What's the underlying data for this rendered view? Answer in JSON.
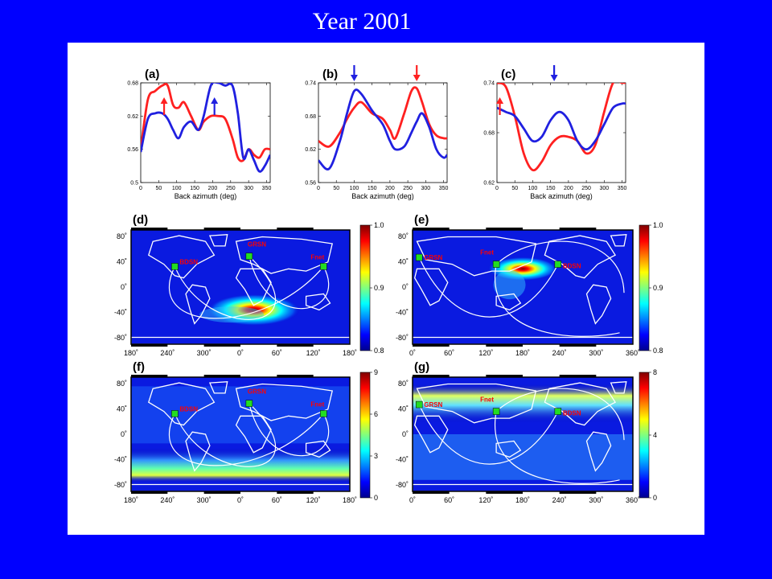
{
  "slide": {
    "title": "Year 2001"
  },
  "colors": {
    "background": "#0000FF",
    "panel": "#FFFFFF",
    "series_red": "#FF2020",
    "series_blue": "#2020E0",
    "station_marker": "#22DD22",
    "station_label": "#FF0000"
  },
  "chart_data": [
    {
      "type": "line",
      "panel": "(a)",
      "xlabel": "Back azimuth (deg)",
      "ylabel": "",
      "xlim": [
        0,
        360
      ],
      "ylim": [
        0.5,
        0.68
      ],
      "xticks": [
        "0",
        "50",
        "100",
        "150",
        "200",
        "250",
        "300",
        "350"
      ],
      "yticks": [
        "0.5",
        "0.56",
        "0.62",
        "0.68"
      ],
      "x": [
        0,
        20,
        40,
        60,
        75,
        90,
        105,
        120,
        140,
        160,
        175,
        195,
        215,
        235,
        255,
        270,
        285,
        300,
        315,
        330,
        345,
        360
      ],
      "series": [
        {
          "color": "red",
          "values": [
            0.56,
            0.65,
            0.665,
            0.675,
            0.675,
            0.64,
            0.635,
            0.645,
            0.62,
            0.595,
            0.61,
            0.62,
            0.62,
            0.615,
            0.58,
            0.545,
            0.54,
            0.56,
            0.55,
            0.545,
            0.56,
            0.56
          ]
        },
        {
          "color": "blue",
          "values": [
            0.555,
            0.615,
            0.625,
            0.625,
            0.615,
            0.595,
            0.58,
            0.6,
            0.61,
            0.595,
            0.62,
            0.675,
            0.68,
            0.675,
            0.675,
            0.625,
            0.545,
            0.56,
            0.54,
            0.52,
            0.53,
            0.55
          ]
        }
      ],
      "annotations": [
        {
          "type": "arrow",
          "color": "red",
          "x": 65,
          "direction": "up"
        },
        {
          "type": "arrow",
          "color": "blue",
          "x": 205,
          "direction": "up"
        }
      ]
    },
    {
      "type": "line",
      "panel": "(b)",
      "xlabel": "Back azimuth (deg)",
      "ylabel": "",
      "xlim": [
        0,
        360
      ],
      "ylim": [
        0.56,
        0.74
      ],
      "xticks": [
        "0",
        "50",
        "100",
        "150",
        "200",
        "250",
        "300",
        "350"
      ],
      "yticks": [
        "0.56",
        "0.62",
        "0.68",
        "0.74"
      ],
      "x": [
        0,
        30,
        60,
        80,
        100,
        120,
        150,
        180,
        200,
        215,
        240,
        260,
        275,
        290,
        310,
        330,
        350,
        360
      ],
      "series": [
        {
          "color": "red",
          "values": [
            0.635,
            0.625,
            0.65,
            0.675,
            0.695,
            0.705,
            0.685,
            0.675,
            0.655,
            0.64,
            0.685,
            0.725,
            0.73,
            0.705,
            0.665,
            0.645,
            0.64,
            0.64
          ]
        },
        {
          "color": "blue",
          "values": [
            0.6,
            0.585,
            0.635,
            0.685,
            0.725,
            0.72,
            0.69,
            0.665,
            0.635,
            0.62,
            0.625,
            0.65,
            0.67,
            0.685,
            0.66,
            0.62,
            0.605,
            0.61
          ]
        }
      ],
      "annotations": [
        {
          "type": "arrow",
          "color": "blue",
          "x": 100,
          "direction": "down"
        },
        {
          "type": "arrow",
          "color": "red",
          "x": 275,
          "direction": "down"
        }
      ]
    },
    {
      "type": "line",
      "panel": "(c)",
      "xlabel": "Back azimuth (deg)",
      "ylabel": "",
      "xlim": [
        0,
        360
      ],
      "ylim": [
        0.62,
        0.74
      ],
      "xticks": [
        "0",
        "50",
        "100",
        "150",
        "200",
        "250",
        "300",
        "350"
      ],
      "yticks": [
        "0.62",
        "0.68",
        "0.74"
      ],
      "x": [
        0,
        25,
        50,
        75,
        100,
        125,
        150,
        175,
        200,
        225,
        250,
        275,
        300,
        325,
        350,
        360
      ],
      "series": [
        {
          "color": "red",
          "values": [
            0.74,
            0.735,
            0.7,
            0.655,
            0.635,
            0.645,
            0.665,
            0.675,
            0.675,
            0.67,
            0.655,
            0.665,
            0.705,
            0.74,
            0.74,
            0.74
          ]
        },
        {
          "color": "blue",
          "values": [
            0.71,
            0.705,
            0.7,
            0.685,
            0.67,
            0.675,
            0.695,
            0.705,
            0.695,
            0.67,
            0.66,
            0.67,
            0.69,
            0.71,
            0.715,
            0.715
          ]
        }
      ],
      "annotations": [
        {
          "type": "arrow",
          "color": "red",
          "x": 8,
          "direction": "up"
        },
        {
          "type": "arrow",
          "color": "blue",
          "x": 160,
          "direction": "down"
        }
      ]
    },
    {
      "type": "heatmap",
      "panel": "(d)",
      "xticks": [
        "180˚",
        "240˚",
        "300˚",
        "0˚",
        "60˚",
        "120˚",
        "180˚"
      ],
      "yticks": [
        "80˚",
        "40˚",
        "0˚",
        "-40˚",
        "-80˚"
      ],
      "colorbar": {
        "min": 0.8,
        "max": 1.0,
        "ticks": [
          "1.0",
          "0.9",
          "0.8"
        ]
      },
      "stations": [
        "BDSN",
        "GRSN",
        "Fnet"
      ]
    },
    {
      "type": "heatmap",
      "panel": "(e)",
      "xticks": [
        "0˚",
        "60˚",
        "120˚",
        "180˚",
        "240˚",
        "300˚",
        "360˚"
      ],
      "yticks": [
        "80˚",
        "40˚",
        "0˚",
        "-40˚",
        "-80˚"
      ],
      "colorbar": {
        "min": 0.8,
        "max": 1.0,
        "ticks": [
          "1.0",
          "0.9",
          "0.8"
        ]
      },
      "stations": [
        "GRSN",
        "Fnet",
        "BDSN"
      ]
    },
    {
      "type": "heatmap",
      "panel": "(f)",
      "xticks": [
        "180˚",
        "240˚",
        "300˚",
        "0˚",
        "60˚",
        "120˚",
        "180˚"
      ],
      "yticks": [
        "80˚",
        "40˚",
        "0˚",
        "-40˚",
        "-80˚"
      ],
      "colorbar": {
        "min": 0,
        "max": 9,
        "ticks": [
          "9",
          "6",
          "3",
          "0"
        ]
      },
      "stations": [
        "BDSN",
        "GRSN",
        "Fnet"
      ]
    },
    {
      "type": "heatmap",
      "panel": "(g)",
      "xticks": [
        "0˚",
        "60˚",
        "120˚",
        "180˚",
        "240˚",
        "300˚",
        "360˚"
      ],
      "yticks": [
        "80˚",
        "40˚",
        "0˚",
        "-40˚",
        "-80˚"
      ],
      "colorbar": {
        "min": 0,
        "max": 8,
        "ticks": [
          "8",
          "4",
          "0"
        ]
      },
      "stations": [
        "GRSN",
        "Fnet",
        "BDSN"
      ]
    }
  ]
}
